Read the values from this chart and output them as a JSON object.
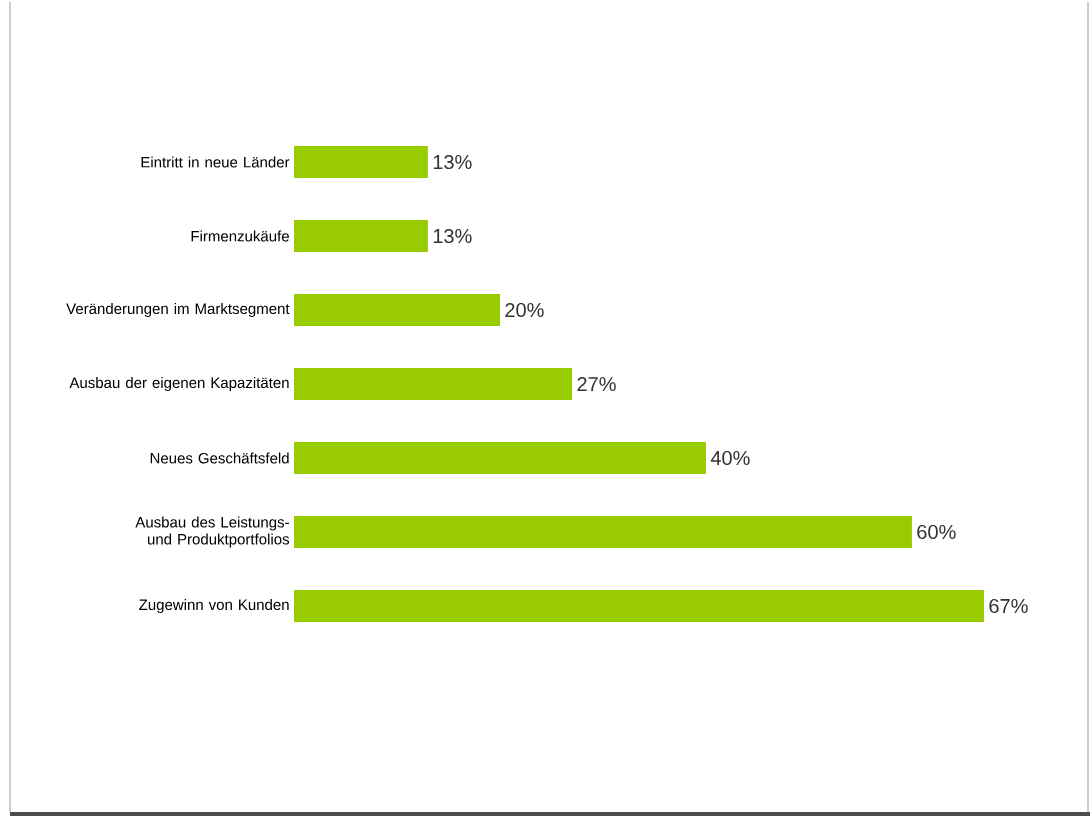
{
  "chart_data": {
    "type": "bar",
    "orientation": "horizontal",
    "categories": [
      "Eintritt in neue Länder",
      "Firmenzukäufe",
      "Veränderungen im Marktsegment",
      "Ausbau der eigenen Kapazitäten",
      "Neues Geschäftsfeld",
      "Ausbau des Leistungs- und Produktportfolios",
      "Zugewinn von Kunden"
    ],
    "values": [
      13,
      13,
      20,
      27,
      40,
      60,
      67
    ],
    "value_labels": [
      "13%",
      "13%",
      "20%",
      "27%",
      "40%",
      "60%",
      "67%"
    ],
    "color": "#99cc00"
  }
}
